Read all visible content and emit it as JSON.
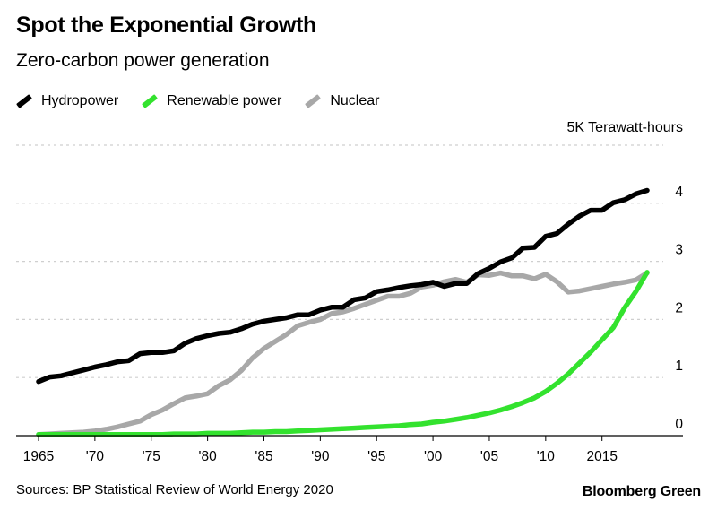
{
  "header": {
    "title": "Spot the Exponential Growth",
    "subtitle": "Zero-carbon power generation"
  },
  "legend": [
    {
      "label": "Hydropower",
      "color": "#000000"
    },
    {
      "label": "Renewable power",
      "color": "#33e22e"
    },
    {
      "label": "Nuclear",
      "color": "#a8a8a8"
    }
  ],
  "footer": {
    "source": "Sources: BP Statistical Review of World Energy 2020",
    "brand": "Bloomberg Green"
  },
  "chart_data": {
    "type": "line",
    "title": "Spot the Exponential Growth",
    "subtitle": "Zero-carbon power generation",
    "unit_label": "5K Terawatt-hours",
    "xlabel": "",
    "ylabel": "",
    "xlim": [
      1965,
      2019
    ],
    "ylim": [
      0,
      5000
    ],
    "y_ticks": [
      {
        "value": 0,
        "label": "0"
      },
      {
        "value": 1000,
        "label": "1"
      },
      {
        "value": 2000,
        "label": "2"
      },
      {
        "value": 3000,
        "label": "3"
      },
      {
        "value": 4000,
        "label": "4"
      },
      {
        "value": 5000,
        "label": ""
      }
    ],
    "x_ticks": [
      {
        "value": 1965,
        "label": "1965"
      },
      {
        "value": 1970,
        "label": "'70"
      },
      {
        "value": 1975,
        "label": "'75"
      },
      {
        "value": 1980,
        "label": "'80"
      },
      {
        "value": 1985,
        "label": "'85"
      },
      {
        "value": 1990,
        "label": "'90"
      },
      {
        "value": 1995,
        "label": "'95"
      },
      {
        "value": 2000,
        "label": "'00"
      },
      {
        "value": 2005,
        "label": "'05"
      },
      {
        "value": 2010,
        "label": "'10"
      },
      {
        "value": 2015,
        "label": "2015"
      }
    ],
    "grid": true,
    "legend_position": "top-left",
    "x": [
      1965,
      1966,
      1967,
      1968,
      1969,
      1970,
      1971,
      1972,
      1973,
      1974,
      1975,
      1976,
      1977,
      1978,
      1979,
      1980,
      1981,
      1982,
      1983,
      1984,
      1985,
      1986,
      1987,
      1988,
      1989,
      1990,
      1991,
      1992,
      1993,
      1994,
      1995,
      1996,
      1997,
      1998,
      1999,
      2000,
      2001,
      2002,
      2003,
      2004,
      2005,
      2006,
      2007,
      2008,
      2009,
      2010,
      2011,
      2012,
      2013,
      2014,
      2015,
      2016,
      2017,
      2018,
      2019
    ],
    "series": [
      {
        "name": "Hydropower",
        "color": "#000000",
        "values": [
          930,
          1010,
          1030,
          1080,
          1130,
          1180,
          1220,
          1270,
          1290,
          1410,
          1430,
          1430,
          1460,
          1590,
          1670,
          1720,
          1760,
          1780,
          1840,
          1920,
          1970,
          2000,
          2030,
          2080,
          2080,
          2160,
          2210,
          2210,
          2340,
          2370,
          2480,
          2510,
          2550,
          2580,
          2600,
          2640,
          2570,
          2620,
          2620,
          2790,
          2880,
          2990,
          3060,
          3230,
          3240,
          3430,
          3480,
          3640,
          3780,
          3880,
          3880,
          4010,
          4060,
          4160,
          4220
        ]
      },
      {
        "name": "Renewable power",
        "color": "#33e22e",
        "values": [
          20,
          20,
          20,
          20,
          20,
          20,
          20,
          20,
          20,
          20,
          20,
          20,
          30,
          30,
          30,
          40,
          40,
          40,
          50,
          60,
          60,
          70,
          70,
          80,
          90,
          100,
          110,
          120,
          130,
          140,
          150,
          160,
          170,
          190,
          200,
          230,
          250,
          280,
          310,
          350,
          390,
          440,
          500,
          570,
          650,
          760,
          900,
          1060,
          1250,
          1440,
          1650,
          1860,
          2200,
          2480,
          2810
        ]
      },
      {
        "name": "Nuclear",
        "color": "#a8a8a8",
        "values": [
          20,
          30,
          40,
          50,
          60,
          80,
          110,
          150,
          200,
          250,
          360,
          440,
          550,
          650,
          680,
          720,
          860,
          960,
          1120,
          1340,
          1500,
          1620,
          1740,
          1890,
          1950,
          2000,
          2100,
          2130,
          2190,
          2260,
          2330,
          2400,
          2400,
          2450,
          2560,
          2590,
          2650,
          2690,
          2640,
          2770,
          2760,
          2800,
          2750,
          2750,
          2700,
          2780,
          2650,
          2470,
          2490,
          2530,
          2570,
          2610,
          2640,
          2680,
          2800
        ]
      }
    ]
  }
}
